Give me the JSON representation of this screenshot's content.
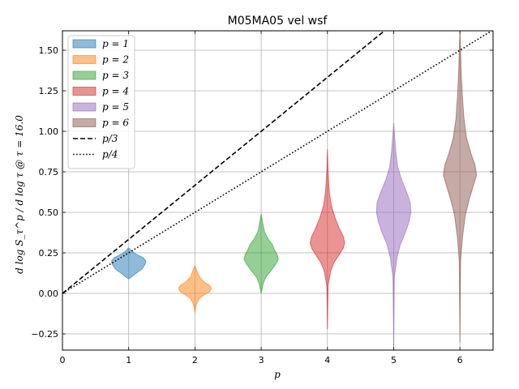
{
  "chart_data": {
    "type": "violin",
    "title": "M05MA05 vel wsf",
    "xlabel": "p",
    "ylabel": "d log S_τ^p / d log τ @ τ = 16.0",
    "xlim": [
      0,
      6.5
    ],
    "ylim": [
      -0.35,
      1.62
    ],
    "xticks": [
      0,
      1,
      2,
      3,
      4,
      5,
      6
    ],
    "yticks": [
      -0.25,
      0.0,
      0.25,
      0.5,
      0.75,
      1.0,
      1.25,
      1.5
    ],
    "ytick_labels": [
      "−0.25",
      "0.00",
      "0.25",
      "0.50",
      "0.75",
      "1.00",
      "1.25",
      "1.50"
    ],
    "grid": true,
    "legend_position": "upper-left",
    "violins": [
      {
        "name": "p = 1",
        "position": 1,
        "color": "#1f77b4",
        "profile": [
          [
            0.09,
            0.0
          ],
          [
            0.1,
            0.04
          ],
          [
            0.12,
            0.1
          ],
          [
            0.15,
            0.2
          ],
          [
            0.18,
            0.25
          ],
          [
            0.2,
            0.26
          ],
          [
            0.22,
            0.22
          ],
          [
            0.24,
            0.12
          ],
          [
            0.26,
            0.05
          ],
          [
            0.28,
            0.0
          ]
        ]
      },
      {
        "name": "p = 2",
        "position": 2,
        "color": "#ff7f0e",
        "profile": [
          [
            -0.12,
            0.0
          ],
          [
            -0.07,
            0.02
          ],
          [
            -0.03,
            0.07
          ],
          [
            -0.01,
            0.14
          ],
          [
            0.01,
            0.22
          ],
          [
            0.03,
            0.25
          ],
          [
            0.05,
            0.22
          ],
          [
            0.07,
            0.14
          ],
          [
            0.1,
            0.07
          ],
          [
            0.14,
            0.03
          ],
          [
            0.17,
            0.0
          ]
        ]
      },
      {
        "name": "p = 3",
        "position": 3,
        "color": "#2ca02c",
        "profile": [
          [
            0.0,
            0.0
          ],
          [
            0.06,
            0.03
          ],
          [
            0.1,
            0.07
          ],
          [
            0.14,
            0.15
          ],
          [
            0.18,
            0.22
          ],
          [
            0.21,
            0.26
          ],
          [
            0.24,
            0.24
          ],
          [
            0.27,
            0.2
          ],
          [
            0.3,
            0.17
          ],
          [
            0.34,
            0.1
          ],
          [
            0.38,
            0.05
          ],
          [
            0.44,
            0.02
          ],
          [
            0.49,
            0.0
          ]
        ]
      },
      {
        "name": "p = 4",
        "position": 4,
        "color": "#d62728",
        "profile": [
          [
            -0.22,
            0.0
          ],
          [
            0.05,
            0.01
          ],
          [
            0.14,
            0.05
          ],
          [
            0.19,
            0.1
          ],
          [
            0.24,
            0.18
          ],
          [
            0.28,
            0.24
          ],
          [
            0.31,
            0.26
          ],
          [
            0.35,
            0.24
          ],
          [
            0.4,
            0.18
          ],
          [
            0.46,
            0.12
          ],
          [
            0.54,
            0.06
          ],
          [
            0.62,
            0.03
          ],
          [
            0.75,
            0.01
          ],
          [
            0.89,
            0.0
          ]
        ]
      },
      {
        "name": "p = 5",
        "position": 5,
        "color": "#9467bd",
        "profile": [
          [
            -0.35,
            0.0
          ],
          [
            0.1,
            0.01
          ],
          [
            0.22,
            0.05
          ],
          [
            0.3,
            0.1
          ],
          [
            0.38,
            0.18
          ],
          [
            0.44,
            0.23
          ],
          [
            0.5,
            0.26
          ],
          [
            0.56,
            0.25
          ],
          [
            0.62,
            0.2
          ],
          [
            0.7,
            0.12
          ],
          [
            0.78,
            0.06
          ],
          [
            0.88,
            0.03
          ],
          [
            1.05,
            0.0
          ]
        ]
      },
      {
        "name": "p = 6",
        "position": 6,
        "color": "#8c564b",
        "profile": [
          [
            -0.3,
            0.0
          ],
          [
            0.2,
            0.01
          ],
          [
            0.35,
            0.04
          ],
          [
            0.48,
            0.08
          ],
          [
            0.58,
            0.14
          ],
          [
            0.66,
            0.2
          ],
          [
            0.73,
            0.25
          ],
          [
            0.79,
            0.23
          ],
          [
            0.86,
            0.17
          ],
          [
            0.96,
            0.1
          ],
          [
            1.08,
            0.06
          ],
          [
            1.2,
            0.04
          ],
          [
            1.35,
            0.02
          ],
          [
            1.5,
            0.01
          ],
          [
            1.62,
            0.0
          ]
        ]
      }
    ],
    "lines": [
      {
        "name": "p/3",
        "slope": 0.3333,
        "style": "dashed",
        "color": "#000000"
      },
      {
        "name": "p/4",
        "slope": 0.25,
        "style": "dotted",
        "color": "#000000"
      }
    ],
    "legend": [
      {
        "label": "p = 1",
        "kind": "patch",
        "color": "#1f77b4"
      },
      {
        "label": "p = 2",
        "kind": "patch",
        "color": "#ff7f0e"
      },
      {
        "label": "p = 3",
        "kind": "patch",
        "color": "#2ca02c"
      },
      {
        "label": "p = 4",
        "kind": "patch",
        "color": "#d62728"
      },
      {
        "label": "p = 5",
        "kind": "patch",
        "color": "#9467bd"
      },
      {
        "label": "p = 6",
        "kind": "patch",
        "color": "#8c564b"
      },
      {
        "label": "p/3",
        "kind": "dashed"
      },
      {
        "label": "p/4",
        "kind": "dotted"
      }
    ]
  }
}
